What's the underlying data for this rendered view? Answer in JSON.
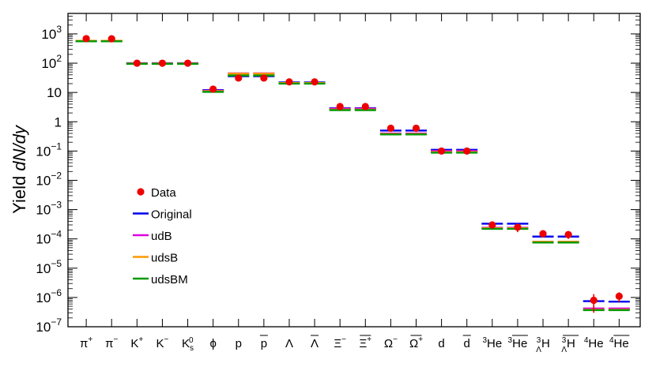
{
  "chart_data": {
    "type": "scatter",
    "ylabel": "Yield dN/dy",
    "yscale": "log",
    "ylim": [
      1e-07,
      5000
    ],
    "yticks": [
      {
        "value": 1000.0,
        "label_base": "10",
        "label_exp": "3"
      },
      {
        "value": 100.0,
        "label_base": "10",
        "label_exp": "2"
      },
      {
        "value": 10,
        "label_base": "10",
        "label_exp": ""
      },
      {
        "value": 1,
        "label_base": "1",
        "label_exp": ""
      },
      {
        "value": 0.1,
        "label_base": "10",
        "label_exp": "−1"
      },
      {
        "value": 0.01,
        "label_base": "10",
        "label_exp": "−2"
      },
      {
        "value": 0.001,
        "label_base": "10",
        "label_exp": "−3"
      },
      {
        "value": 0.0001,
        "label_base": "10",
        "label_exp": "−4"
      },
      {
        "value": 1e-05,
        "label_base": "10",
        "label_exp": "−5"
      },
      {
        "value": 1e-06,
        "label_base": "10",
        "label_exp": "−6"
      },
      {
        "value": 1e-07,
        "label_base": "10",
        "label_exp": "−7"
      }
    ],
    "categories": [
      {
        "base": "π",
        "sup": "+",
        "sub": ""
      },
      {
        "base": "π",
        "sup": "−",
        "sub": ""
      },
      {
        "base": "K",
        "sup": "+",
        "sub": ""
      },
      {
        "base": "K",
        "sup": "−",
        "sub": ""
      },
      {
        "base": "K",
        "sup": "0",
        "sub": "s"
      },
      {
        "base": "ϕ",
        "sup": "",
        "sub": ""
      },
      {
        "base": "p",
        "sup": "",
        "sub": ""
      },
      {
        "base": "p",
        "sup": "",
        "sub": "",
        "bar": true
      },
      {
        "base": "Λ",
        "sup": "",
        "sub": ""
      },
      {
        "base": "Λ",
        "sup": "",
        "sub": "",
        "bar": true
      },
      {
        "base": "Ξ",
        "sup": "−",
        "sub": ""
      },
      {
        "base": "Ξ",
        "sup": "+",
        "sub": "",
        "bar": true
      },
      {
        "base": "Ω",
        "sup": "−",
        "sub": ""
      },
      {
        "base": "Ω",
        "sup": "+",
        "sub": "",
        "bar": true
      },
      {
        "base": "d",
        "sup": "",
        "sub": ""
      },
      {
        "base": "d",
        "sup": "",
        "sub": "",
        "bar": true
      },
      {
        "pre": "3",
        "base": "He",
        "sup": "",
        "sub": ""
      },
      {
        "pre": "3",
        "base": "He",
        "sup": "",
        "sub": "",
        "bar": true
      },
      {
        "pre": "3",
        "presub": "Λ",
        "base": "H",
        "sup": "",
        "sub": ""
      },
      {
        "pre": "3",
        "presub": "Λ",
        "base": "H",
        "sup": "",
        "sub": "",
        "bar": true,
        "presubbar": true
      },
      {
        "pre": "4",
        "base": "He",
        "sup": "",
        "sub": ""
      },
      {
        "pre": "4",
        "base": "He",
        "sup": "",
        "sub": "",
        "bar": true
      }
    ],
    "data": {
      "name": "Data",
      "color": "#ee0000",
      "values": [
        690,
        680,
        100,
        100,
        100,
        13,
        31,
        31,
        23,
        23,
        3.3,
        3.3,
        0.6,
        0.6,
        0.1,
        0.1,
        0.0003,
        0.00025,
        0.00015,
        0.00014,
        8e-07,
        1.1e-06
      ],
      "errors": [
        0,
        0,
        0,
        0,
        0,
        0,
        0,
        0,
        0,
        0,
        0,
        0,
        0,
        0,
        0,
        0,
        0,
        8e-05,
        0,
        4e-05,
        5e-07,
        4e-07
      ]
    },
    "series": [
      {
        "name": "Original",
        "color": "#0000ee",
        "values": [
          580,
          580,
          100,
          100,
          100,
          12,
          36,
          36,
          22,
          22,
          2.9,
          2.9,
          0.5,
          0.5,
          0.11,
          0.11,
          0.00033,
          0.00033,
          0.00012,
          0.00012,
          7.5e-07,
          7.2e-07
        ]
      },
      {
        "name": "udB",
        "color": "#dd00dd",
        "values": [
          580,
          580,
          98,
          98,
          98,
          11.5,
          45,
          45,
          21,
          21,
          2.8,
          2.8,
          0.4,
          0.4,
          0.1,
          0.1,
          0.00024,
          0.00024,
          8e-05,
          8e-05,
          4.2e-07,
          4.2e-07
        ]
      },
      {
        "name": "udsB",
        "color": "#ff9900",
        "values": [
          580,
          580,
          97,
          97,
          97,
          11,
          44,
          44,
          21,
          21,
          2.6,
          2.6,
          0.38,
          0.38,
          0.092,
          0.092,
          0.00023,
          0.00023,
          8e-05,
          8e-05,
          3.8e-07,
          3.8e-07
        ]
      },
      {
        "name": "udsBM",
        "color": "#009900",
        "values": [
          560,
          560,
          95,
          95,
          95,
          10.5,
          38,
          38,
          20,
          20,
          2.5,
          2.5,
          0.37,
          0.37,
          0.088,
          0.088,
          0.00022,
          0.00022,
          7.5e-05,
          7.5e-05,
          3.7e-07,
          3.7e-07
        ]
      }
    ],
    "legend_position": "left-center",
    "grid": false
  }
}
